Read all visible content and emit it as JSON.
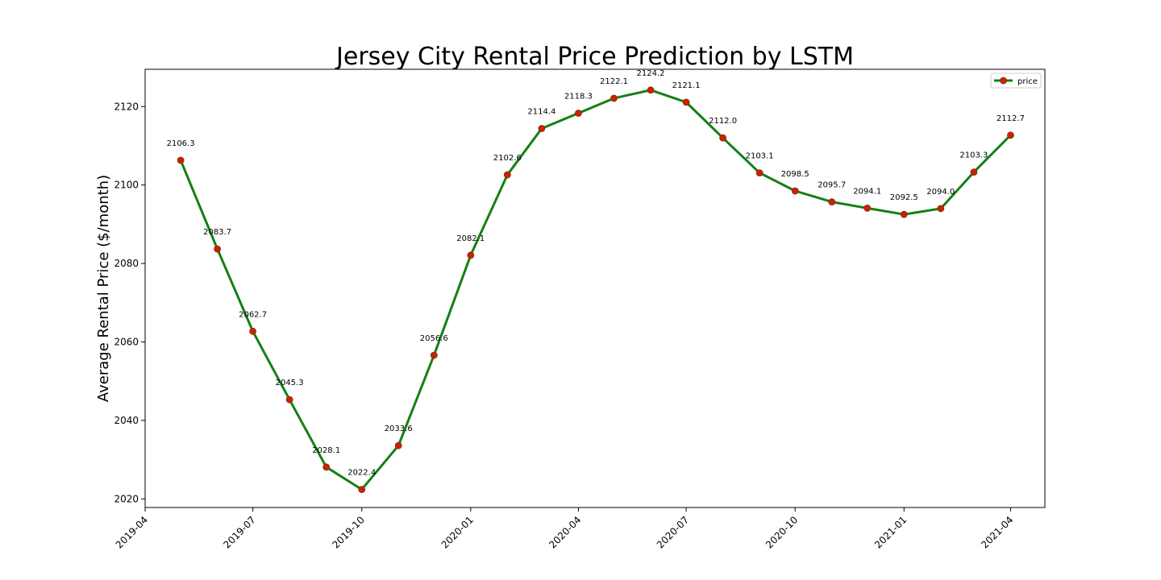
{
  "chart_data": {
    "type": "line",
    "title": "Jersey City Rental Price Prediction by LSTM",
    "xlabel": "",
    "ylabel": "Average Rental Price ($/month)",
    "x": [
      "2019-05",
      "2019-06",
      "2019-07",
      "2019-08",
      "2019-09",
      "2019-10",
      "2019-11",
      "2019-12",
      "2020-01",
      "2020-02",
      "2020-03",
      "2020-04",
      "2020-05",
      "2020-06",
      "2020-07",
      "2020-08",
      "2020-09",
      "2020-10",
      "2020-11",
      "2020-12",
      "2021-01",
      "2021-02",
      "2021-03",
      "2021-04"
    ],
    "series": [
      {
        "name": "price",
        "color": "#138013",
        "marker_color": "#cc2200",
        "values": [
          2106.3,
          2083.7,
          2062.7,
          2045.3,
          2028.1,
          2022.4,
          2033.6,
          2056.6,
          2082.1,
          2102.6,
          2114.4,
          2118.3,
          2122.1,
          2124.2,
          2121.1,
          2112.0,
          2103.1,
          2098.5,
          2095.7,
          2094.1,
          2092.5,
          2094.0,
          2103.3,
          2112.7
        ]
      }
    ],
    "data_labels": [
      "2106.3",
      "2083.7",
      "2062.7",
      "2045.3",
      "2028.1",
      "2022.4",
      "2033.6",
      "2056.6",
      "2082.1",
      "2102.6",
      "2114.4",
      "2118.3",
      "2122.1",
      "2124.2",
      "2121.1",
      "2112.0",
      "2103.1",
      "2098.5",
      "2095.7",
      "2094.1",
      "2092.5",
      "2094.0",
      "2103.3",
      "2112.7"
    ],
    "xticks": [
      "2019-04",
      "2019-07",
      "2019-10",
      "2020-01",
      "2020-04",
      "2020-07",
      "2020-10",
      "2021-01",
      "2021-04"
    ],
    "yticks": [
      "2020",
      "2040",
      "2060",
      "2080",
      "2100",
      "2120"
    ],
    "xlim": [
      "2019-04-01",
      "2021-04-30"
    ],
    "ylim": [
      2017.8,
      2129.5
    ],
    "legend": {
      "placement": "top-right",
      "entries": [
        "price"
      ]
    },
    "grid": false
  }
}
